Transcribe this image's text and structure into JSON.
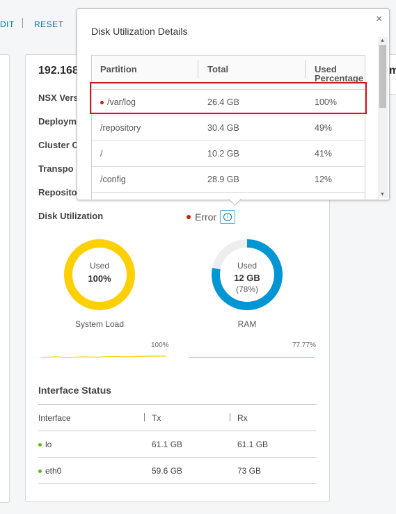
{
  "toolbar": {
    "edit_label": "DIT",
    "reset_label": "RESET"
  },
  "node": {
    "ip": "192.168",
    "fields": [
      "NSX Vers",
      "Deploym",
      "Cluster C",
      "Transpo",
      "Reposito"
    ]
  },
  "right_card_char": "m",
  "disk": {
    "label": "Disk Utilization",
    "status": "Error",
    "status_color": "#c92100"
  },
  "gauges": [
    {
      "used_label": "Used",
      "value": "100%",
      "percent_text": "",
      "fraction": 1.0,
      "color": "#fdd006",
      "track": "#eeeeee",
      "caption": "System Load",
      "spark_value": "100%",
      "spark_color": "#fdd006"
    },
    {
      "used_label": "Used",
      "value": "12 GB",
      "percent_text": "(78%)",
      "fraction": 0.78,
      "color": "#0095d3",
      "track": "#eeeeee",
      "caption": "RAM",
      "spark_value": "77.77%",
      "spark_color": "#8fbfd6"
    }
  ],
  "interfaces": {
    "title": "Interface Status",
    "headers": [
      "Interface",
      "Tx",
      "Rx"
    ],
    "rows": [
      {
        "name": "lo",
        "tx": "61.1 GB",
        "rx": "61.1 GB"
      },
      {
        "name": "eth0",
        "tx": "59.6 GB",
        "rx": "73 GB"
      }
    ],
    "status_color": "#60b515"
  },
  "popover": {
    "title": "Disk Utilization Details",
    "close_icon": "×",
    "headers": [
      "Partition",
      "Total",
      "Used",
      "Percentage"
    ],
    "rows": [
      {
        "partition": "/var/log",
        "total": "26.4 GB",
        "used": "100%",
        "flag": true
      },
      {
        "partition": "/repository",
        "total": "30.4 GB",
        "used": "49%",
        "flag": false
      },
      {
        "partition": "/",
        "total": "10.2 GB",
        "used": "41%",
        "flag": false
      },
      {
        "partition": "/config",
        "total": "28.9 GB",
        "used": "12%",
        "flag": false
      }
    ]
  }
}
